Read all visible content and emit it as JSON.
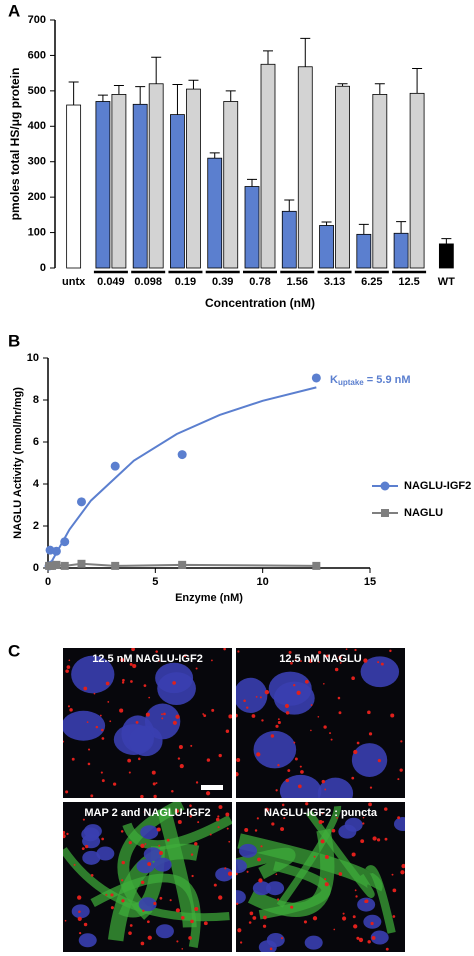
{
  "chart_data": [
    {
      "type": "bar",
      "panel": "A",
      "ylabel": "pmoles total HS/μg protein",
      "xlabel": "Concentration (nM)",
      "categories": [
        "untx",
        "0.049",
        "0.098",
        "0.19",
        "0.39",
        "0.78",
        "1.56",
        "3.13",
        "6.25",
        "12.5",
        "WT"
      ],
      "series": [
        {
          "color": "#ffffff",
          "values": [
            460,
            null,
            null,
            null,
            null,
            null,
            null,
            null,
            null,
            null,
            null
          ],
          "errors": [
            65,
            null,
            null,
            null,
            null,
            null,
            null,
            null,
            null,
            null,
            null
          ]
        },
        {
          "color": "#5b7fcf",
          "values": [
            null,
            470,
            462,
            433,
            310,
            230,
            160,
            120,
            95,
            98,
            null
          ],
          "errors": [
            null,
            18,
            50,
            85,
            15,
            20,
            32,
            10,
            28,
            33,
            null
          ]
        },
        {
          "color": "#d3d3d3",
          "values": [
            null,
            490,
            520,
            505,
            470,
            575,
            568,
            513,
            490,
            493,
            null
          ],
          "errors": [
            null,
            25,
            75,
            25,
            30,
            38,
            80,
            7,
            30,
            70,
            null
          ]
        },
        {
          "color": "#000000",
          "values": [
            null,
            null,
            null,
            null,
            null,
            null,
            null,
            null,
            null,
            null,
            68
          ],
          "errors": [
            null,
            null,
            null,
            null,
            null,
            null,
            null,
            null,
            null,
            null,
            15
          ]
        }
      ],
      "ylim": [
        0,
        700
      ],
      "yticks": [
        0,
        100,
        200,
        300,
        400,
        500,
        600,
        700
      ]
    },
    {
      "type": "scatter",
      "panel": "B",
      "ylabel": "NAGLU Activity (nmol/hr/mg)",
      "xlabel": "Enzyme (nM)",
      "series": [
        {
          "name": "NAGLU-IGF2",
          "color": "#5b7fcf",
          "marker": "circle",
          "line": "fit",
          "x": [
            0.049,
            0.098,
            0.19,
            0.39,
            0.78,
            1.56,
            3.13,
            6.25,
            12.5
          ],
          "values": [
            0.1,
            0.85,
            0.15,
            0.8,
            1.25,
            3.15,
            4.85,
            5.4,
            9.05
          ]
        },
        {
          "name": "NAGLU",
          "color": "#7f7f7f",
          "marker": "square",
          "line": "connect",
          "x": [
            0.049,
            0.098,
            0.19,
            0.39,
            0.78,
            1.56,
            3.13,
            6.25,
            12.5
          ],
          "values": [
            0.1,
            0.1,
            0.1,
            0.15,
            0.1,
            0.2,
            0.1,
            0.15,
            0.1
          ]
        }
      ],
      "fit": {
        "x": [
          0,
          1,
          2,
          4,
          6,
          8,
          10,
          12.5
        ],
        "y": [
          0,
          1.83,
          3.21,
          5.11,
          6.38,
          7.29,
          7.96,
          8.6
        ]
      },
      "annotation": {
        "text": "K",
        "subscript": "uptake",
        "suffix": " = 5.9 nM"
      },
      "xlim": [
        0,
        15
      ],
      "xticks": [
        0,
        5,
        10,
        15
      ],
      "ylim": [
        0,
        10
      ],
      "yticks": [
        0,
        2,
        4,
        6,
        8,
        10
      ],
      "legend": "right"
    }
  ],
  "panel_c": {
    "panel": "C",
    "images": [
      {
        "label": "12.5 nM NAGLU-IGF2"
      },
      {
        "label": "12.5 nM NAGLU"
      },
      {
        "label": "MAP 2 and NAGLU-IGF2"
      },
      {
        "label": "NAGLU-IGF2 : puncta"
      }
    ]
  }
}
